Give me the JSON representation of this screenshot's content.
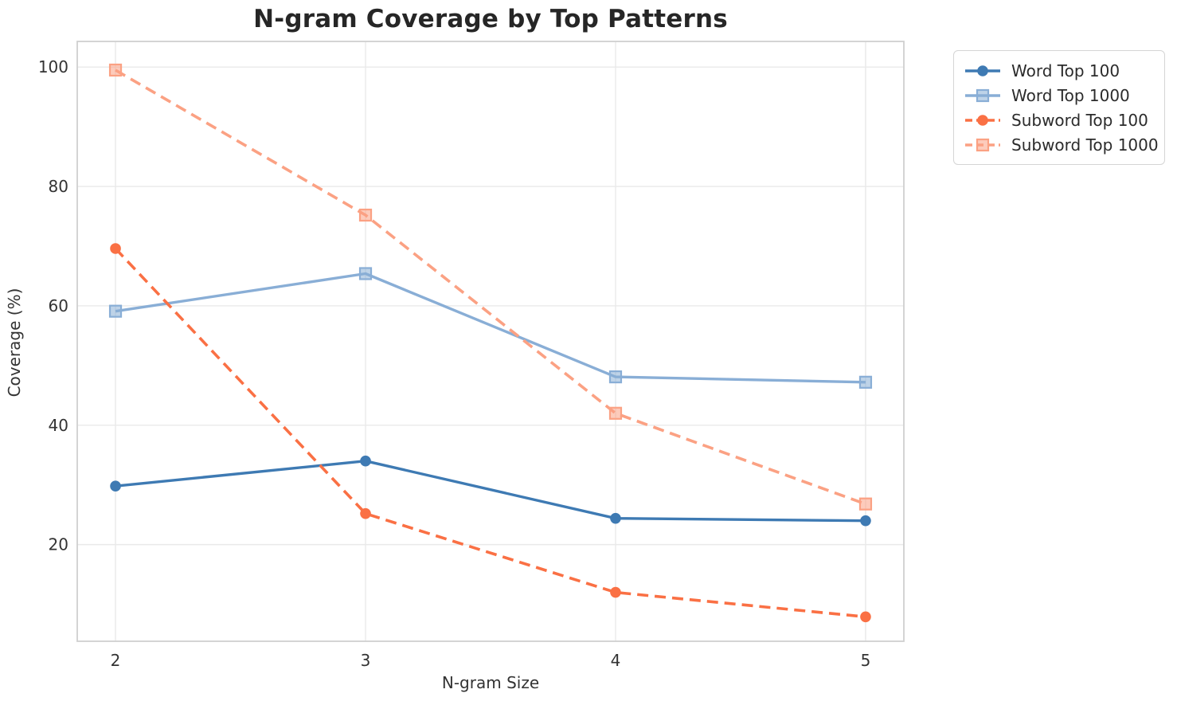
{
  "figure": {
    "title": "N-gram Coverage by Top Patterns",
    "background_color": "#ffffff",
    "grid_color": "#e9e9e9",
    "spine_color": "#d0d0d0",
    "title_color": "#262626",
    "tick_color": "#333333"
  },
  "chart_data": {
    "type": "line",
    "title": "N-gram Coverage by Top Patterns",
    "xlabel": "N-gram Size",
    "ylabel": "Coverage (%)",
    "x": [
      2,
      3,
      4,
      5
    ],
    "x_tick_labels": [
      "2",
      "3",
      "4",
      "5"
    ],
    "y_ticks": [
      20,
      40,
      60,
      80,
      100
    ],
    "y_tick_labels": [
      "20",
      "40",
      "60",
      "80",
      "100"
    ],
    "xlim": [
      1.847,
      5.153
    ],
    "ylim": [
      3.8,
      104.3
    ],
    "grid": true,
    "legend_position": "upper-right-outside",
    "series": [
      {
        "name": "Word Top 100",
        "values": [
          29.8,
          34.0,
          24.4,
          24.0
        ],
        "color": "#3e7ab3",
        "marker": "circle",
        "line_style": "solid"
      },
      {
        "name": "Word Top 1000",
        "values": [
          59.1,
          65.4,
          48.1,
          47.2
        ],
        "color": "#89aed6",
        "marker": "square",
        "line_style": "solid"
      },
      {
        "name": "Subword Top 100",
        "values": [
          69.6,
          25.2,
          12.0,
          7.9
        ],
        "color": "#fa7044",
        "marker": "circle",
        "line_style": "dashed"
      },
      {
        "name": "Subword Top 1000",
        "values": [
          99.5,
          75.2,
          42.0,
          26.8
        ],
        "color": "#fba183",
        "marker": "square",
        "line_style": "dashed"
      }
    ]
  }
}
